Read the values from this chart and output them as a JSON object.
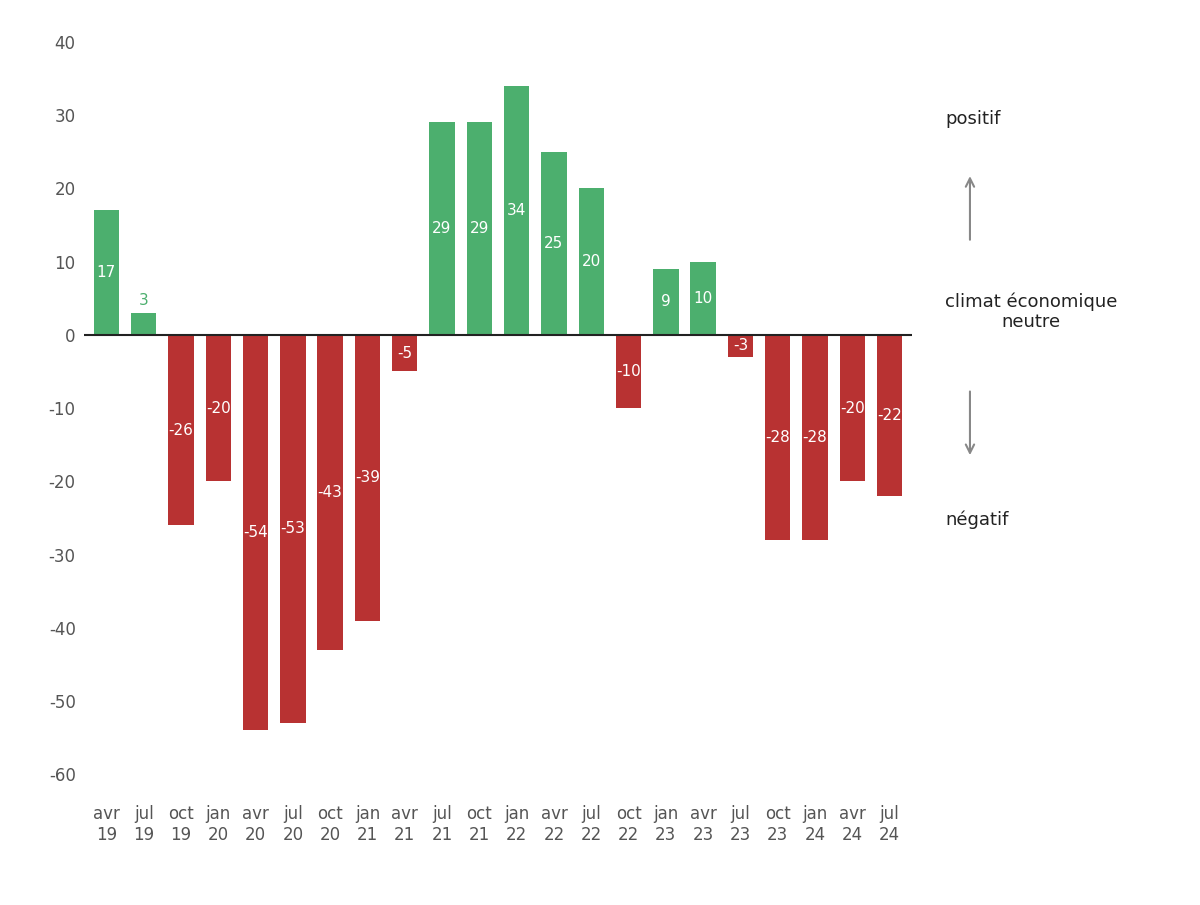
{
  "categories": [
    "avr\n19",
    "jul\n19",
    "oct\n19",
    "jan\n20",
    "avr\n20",
    "jul\n20",
    "oct\n20",
    "jan\n21",
    "avr\n21",
    "jul\n21",
    "oct\n21",
    "jan\n22",
    "avr\n22",
    "jul\n22",
    "oct\n22",
    "jan\n23",
    "avr\n23",
    "jul\n23",
    "oct\n23",
    "jan\n24",
    "avr\n24",
    "jul\n24"
  ],
  "values": [
    17,
    3,
    -26,
    -20,
    -54,
    -53,
    -43,
    -39,
    -5,
    29,
    29,
    34,
    25,
    20,
    -10,
    9,
    10,
    -3,
    -28,
    -28,
    -20,
    -22
  ],
  "color_positive": "#4caf6e",
  "color_negative": "#b83232",
  "ylim_min": -63,
  "ylim_max": 42,
  "yticks": [
    -60,
    -50,
    -40,
    -30,
    -20,
    -10,
    0,
    10,
    20,
    30,
    40
  ],
  "ytick_labels": [
    "-60",
    "-50",
    "-40",
    "-30",
    "-20",
    "-10",
    "0",
    "10",
    "20",
    "30",
    "40"
  ],
  "annotation_text_positif": "positif",
  "annotation_text_neutre": "climat économique\nneutre",
  "annotation_text_negatif": "négatif",
  "background_color": "#ffffff",
  "bar_text_color_white": "#ffffff",
  "bar_text_color_green": "#4caf6e",
  "label_fontsize": 12,
  "bar_value_fontsize": 11,
  "arrow_color": "#888888",
  "zero_line_color": "#222222",
  "ytick_color": "#555555"
}
